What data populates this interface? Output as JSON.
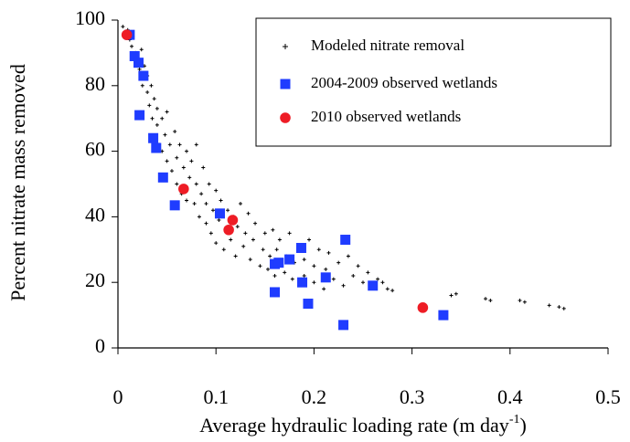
{
  "chart_data": {
    "type": "scatter",
    "xlabel": {
      "text": "Average hydraulic loading rate (m day",
      "superscript": "-1",
      "suffix": ")"
    },
    "ylabel": "Percent nitrate mass removed",
    "xlim": [
      0,
      0.5
    ],
    "xticks": [
      0,
      0.1,
      0.2,
      0.3,
      0.4,
      0.5
    ],
    "ylim": [
      0,
      100
    ],
    "yticks": [
      0,
      20,
      40,
      60,
      80,
      100
    ],
    "grid": false,
    "legend": "upper right",
    "series": [
      {
        "name": "Modeled nitrate removal",
        "color": "#000000",
        "marker": "plus",
        "x": [
          0.005,
          0.008,
          0.01,
          0.012,
          0.014,
          0.015,
          0.018,
          0.02,
          0.022,
          0.024,
          0.025,
          0.027,
          0.03,
          0.03,
          0.032,
          0.034,
          0.035,
          0.037,
          0.04,
          0.04,
          0.042,
          0.045,
          0.045,
          0.048,
          0.05,
          0.05,
          0.053,
          0.055,
          0.058,
          0.06,
          0.06,
          0.063,
          0.065,
          0.067,
          0.07,
          0.07,
          0.073,
          0.075,
          0.078,
          0.08,
          0.08,
          0.083,
          0.085,
          0.087,
          0.09,
          0.09,
          0.093,
          0.095,
          0.097,
          0.1,
          0.1,
          0.103,
          0.105,
          0.108,
          0.11,
          0.112,
          0.115,
          0.118,
          0.12,
          0.122,
          0.125,
          0.128,
          0.13,
          0.133,
          0.135,
          0.138,
          0.14,
          0.145,
          0.148,
          0.15,
          0.153,
          0.155,
          0.158,
          0.16,
          0.162,
          0.165,
          0.17,
          0.172,
          0.175,
          0.178,
          0.18,
          0.185,
          0.19,
          0.19,
          0.195,
          0.2,
          0.2,
          0.205,
          0.21,
          0.212,
          0.215,
          0.22,
          0.225,
          0.23,
          0.235,
          0.24,
          0.245,
          0.25,
          0.255,
          0.26,
          0.265,
          0.27,
          0.275,
          0.28,
          0.34,
          0.345,
          0.375,
          0.38,
          0.41,
          0.415,
          0.44,
          0.45,
          0.455
        ],
        "values": [
          98,
          96,
          97,
          94,
          92,
          95,
          90,
          88,
          85,
          91,
          80,
          86,
          78,
          83,
          74,
          80,
          70,
          76,
          68,
          73,
          62,
          70,
          60,
          65,
          57,
          72,
          62,
          54,
          66,
          50,
          58,
          62,
          47,
          55,
          60,
          45,
          52,
          57,
          44,
          50,
          62,
          40,
          47,
          55,
          38,
          44,
          50,
          35,
          42,
          48,
          32,
          39,
          45,
          30,
          36,
          42,
          33,
          40,
          28,
          37,
          44,
          31,
          35,
          41,
          27,
          33,
          38,
          25,
          30,
          35,
          24,
          28,
          36,
          22,
          30,
          33,
          23,
          28,
          35,
          21,
          26,
          31,
          22,
          27,
          33,
          20,
          25,
          30,
          18,
          24,
          29,
          21,
          26,
          19,
          28,
          22,
          25,
          20,
          23,
          19,
          21,
          20,
          18,
          17.5,
          16,
          16.5,
          15,
          14.5,
          14.5,
          14,
          13,
          12.5,
          12
        ]
      },
      {
        "name": "2004-2009 observed wetlands",
        "color": "#1f3cff",
        "marker": "square",
        "x": [
          0.012,
          0.017,
          0.021,
          0.026,
          0.022,
          0.036,
          0.039,
          0.046,
          0.058,
          0.104,
          0.16,
          0.164,
          0.175,
          0.187,
          0.16,
          0.188,
          0.194,
          0.212,
          0.232,
          0.23,
          0.26,
          0.332
        ],
        "values": [
          95.5,
          89,
          87,
          83,
          71,
          64,
          61,
          52,
          43.5,
          41,
          25.6,
          26,
          27,
          30.5,
          17,
          20,
          13.5,
          21.5,
          33,
          7,
          19,
          10
        ]
      },
      {
        "name": "2010 observed wetlands",
        "color": "#ee1c25",
        "marker": "circle",
        "x": [
          0.009,
          0.067,
          0.117,
          0.113,
          0.311
        ],
        "values": [
          95.5,
          48.5,
          39,
          36,
          12.3
        ]
      }
    ]
  }
}
